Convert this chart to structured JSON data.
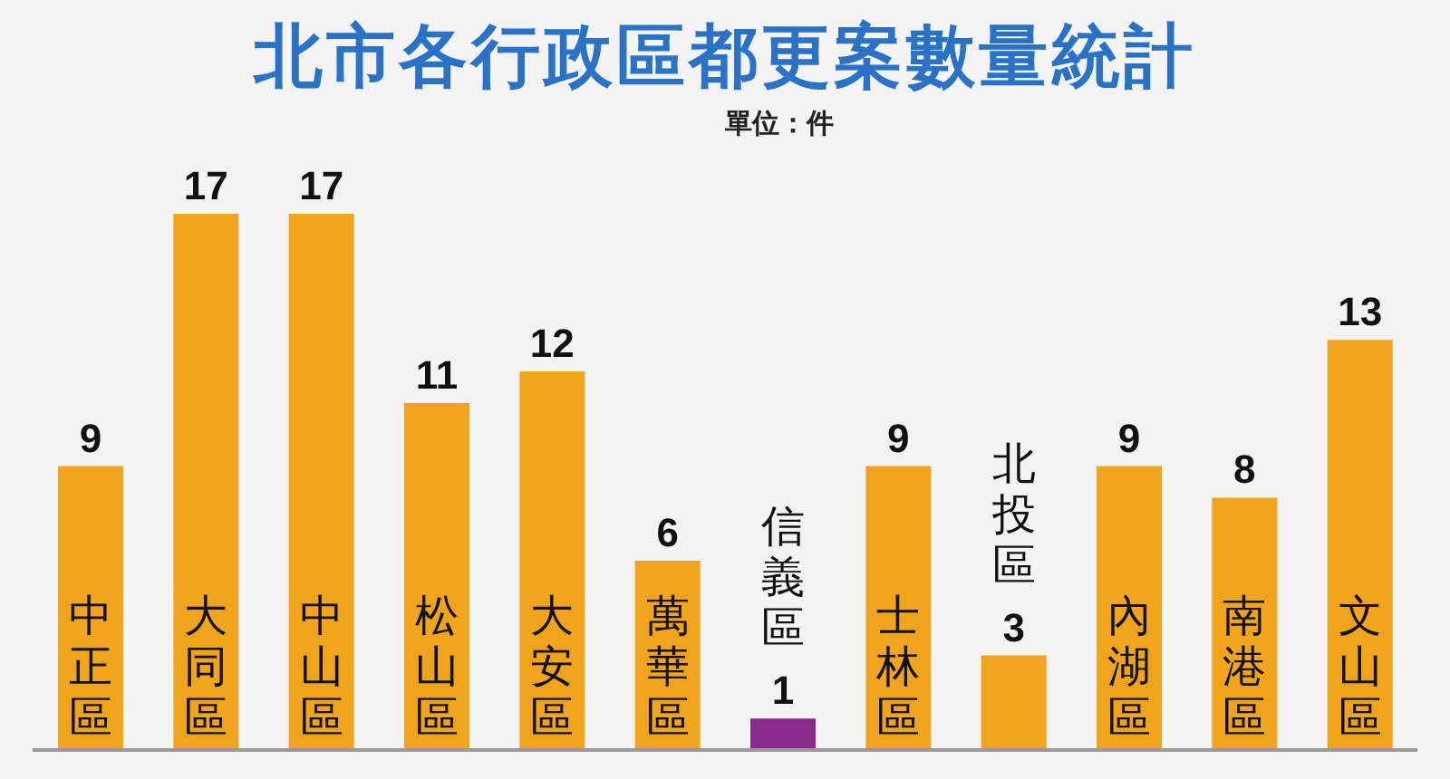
{
  "chart_data": {
    "type": "bar",
    "title": "北市各行政區都更案數量統計",
    "subtitle": "單位：件",
    "categories": [
      "中正區",
      "大同區",
      "中山區",
      "松山區",
      "大安區",
      "萬華區",
      "信義區",
      "士林區",
      "北投區",
      "內湖區",
      "南港區",
      "文山區"
    ],
    "values": [
      9,
      17,
      17,
      11,
      12,
      6,
      1,
      9,
      3,
      9,
      8,
      13
    ],
    "colors": [
      "#f0a41c",
      "#f0a41c",
      "#f0a41c",
      "#f0a41c",
      "#f0a41c",
      "#f0a41c",
      "#8b2a8c",
      "#f0a41c",
      "#f0a41c",
      "#f0a41c",
      "#f0a41c",
      "#f0a41c"
    ],
    "data_labels": true,
    "grid": false,
    "legend": false
  }
}
